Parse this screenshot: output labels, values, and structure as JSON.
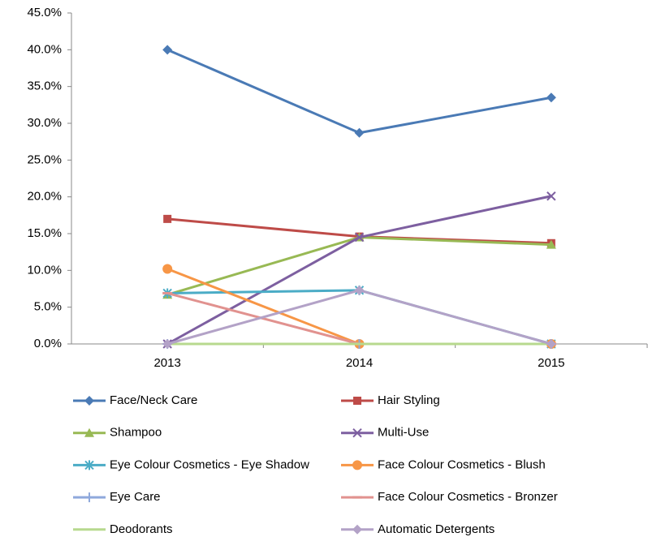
{
  "chart_data": {
    "type": "line",
    "categories": [
      "2013",
      "2014",
      "2015"
    ],
    "ylim": [
      0,
      45
    ],
    "yticks": [
      {
        "value": 0,
        "label": "0.0%"
      },
      {
        "value": 5,
        "label": "5.0%"
      },
      {
        "value": 10,
        "label": "10.0%"
      },
      {
        "value": 15,
        "label": "15.0%"
      },
      {
        "value": 20,
        "label": "20.0%"
      },
      {
        "value": 25,
        "label": "25.0%"
      },
      {
        "value": 30,
        "label": "30.0%"
      },
      {
        "value": 35,
        "label": "35.0%"
      },
      {
        "value": 40,
        "label": "40.0%"
      },
      {
        "value": 45,
        "label": "45.0%"
      }
    ],
    "grid": false,
    "legend": "bottom",
    "series": [
      {
        "name": "Face/Neck Care",
        "color": "#4a7ab5",
        "marker": "diamond",
        "values": [
          40.0,
          28.7,
          33.5
        ]
      },
      {
        "name": "Hair Styling",
        "color": "#be4b48",
        "marker": "square",
        "values": [
          17.0,
          14.6,
          13.7
        ]
      },
      {
        "name": "Shampoo",
        "color": "#98b954",
        "marker": "triangle",
        "values": [
          6.7,
          14.5,
          13.5
        ]
      },
      {
        "name": "Multi-Use",
        "color": "#7d5fa0",
        "marker": "x",
        "values": [
          0,
          14.5,
          20.1
        ]
      },
      {
        "name": "Eye Colour Cosmetics - Eye Shadow",
        "color": "#4bacc6",
        "marker": "asterisk",
        "values": [
          6.9,
          7.3,
          0
        ]
      },
      {
        "name": "Face Colour Cosmetics - Blush",
        "color": "#f79646",
        "marker": "circle",
        "values": [
          10.2,
          0,
          0
        ]
      },
      {
        "name": "Eye Care",
        "color": "#8fa9dc",
        "marker": "plus",
        "values": [
          0,
          0,
          0
        ]
      },
      {
        "name": "Face Colour Cosmetics - Bronzer",
        "color": "#e1928f",
        "marker": "dash",
        "values": [
          6.9,
          0,
          0
        ]
      },
      {
        "name": "Deodorants",
        "color": "#b7d98e",
        "marker": "none",
        "values": [
          0,
          0,
          0
        ]
      },
      {
        "name": "Automatic Detergents",
        "color": "#b3a2c7",
        "marker": "diamond",
        "values": [
          0,
          7.3,
          0
        ]
      }
    ]
  }
}
